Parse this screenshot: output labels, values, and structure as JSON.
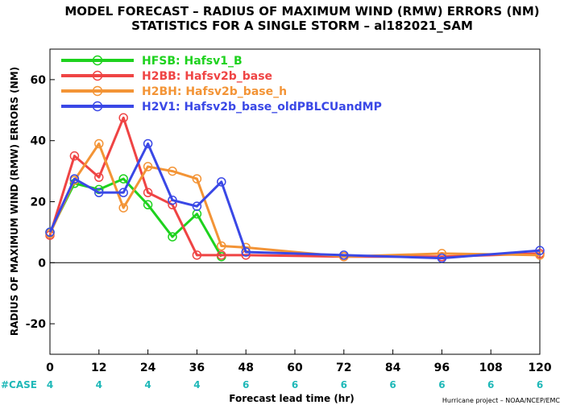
{
  "chart_data": {
    "type": "line",
    "title": "MODEL FORECAST – RADIUS OF MAXIMUM WIND (RMW) ERRORS (NM)",
    "subtitle": "STATISTICS FOR A SINGLE STORM – al182021_SAM",
    "xlabel": "Forecast lead time (hr)",
    "ylabel": "RADIUS OF MAXIMUM WIND (RMW) ERRORS (NM)",
    "xlim": [
      0,
      120
    ],
    "ylim": [
      -30,
      70
    ],
    "xticks": [
      0,
      12,
      24,
      36,
      48,
      60,
      72,
      84,
      96,
      108,
      120
    ],
    "yticks": [
      -20,
      0,
      20,
      40,
      60
    ],
    "grid": false,
    "legend_position": "top-left",
    "series": [
      {
        "name": "HFSB: Hafsv1_B",
        "color": "#1ed21e",
        "x": [
          0,
          6,
          12,
          18,
          24,
          30,
          36,
          42
        ],
        "y": [
          10,
          26,
          24,
          27.5,
          19,
          8.5,
          16,
          2
        ]
      },
      {
        "name": "H2BB: Hafsv2b_base",
        "color": "#ef4444",
        "x": [
          0,
          6,
          12,
          18,
          24,
          30,
          36,
          42,
          48,
          72,
          96,
          120
        ],
        "y": [
          9,
          35,
          28,
          47.5,
          23,
          19,
          2.5,
          2.5,
          2.5,
          2,
          2,
          3
        ]
      },
      {
        "name": "H2BH: Hafsv2b_base_h",
        "color": "#f39436",
        "x": [
          0,
          6,
          12,
          18,
          24,
          30,
          36,
          42,
          48,
          72,
          96,
          120
        ],
        "y": [
          9.5,
          27,
          39,
          18,
          31.5,
          30,
          27.5,
          5.5,
          5,
          2,
          3,
          2.5
        ]
      },
      {
        "name": "H2V1: Hafsv2b_base_oldPBLCUandMP",
        "color": "#3a48e6",
        "x": [
          0,
          6,
          12,
          18,
          24,
          30,
          36,
          42,
          48,
          72,
          96,
          120
        ],
        "y": [
          10,
          27.5,
          23,
          23,
          39,
          20.5,
          18.5,
          26.5,
          3.5,
          2.5,
          1.5,
          4
        ]
      }
    ],
    "case_label": "#CASE",
    "case_counts": [
      {
        "x": 0,
        "n": "4"
      },
      {
        "x": 12,
        "n": "4"
      },
      {
        "x": 24,
        "n": "4"
      },
      {
        "x": 36,
        "n": "4"
      },
      {
        "x": 48,
        "n": "6"
      },
      {
        "x": 60,
        "n": "6"
      },
      {
        "x": 72,
        "n": "6"
      },
      {
        "x": 84,
        "n": "6"
      },
      {
        "x": 96,
        "n": "6"
      },
      {
        "x": 108,
        "n": "6"
      },
      {
        "x": 120,
        "n": "6"
      }
    ]
  },
  "credit": "Hurricane project – NOAA/NCEP/EMC"
}
